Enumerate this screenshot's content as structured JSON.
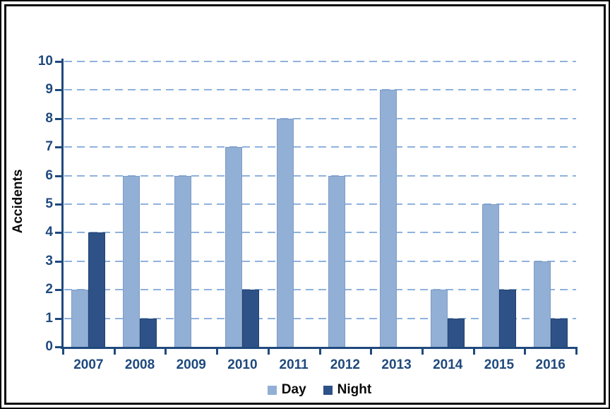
{
  "chart_data": {
    "type": "bar",
    "title": "",
    "categories": [
      "2007",
      "2008",
      "2009",
      "2010",
      "2011",
      "2012",
      "2013",
      "2014",
      "2015",
      "2016"
    ],
    "series": [
      {
        "name": "Day",
        "color": "#92AFD5",
        "border_color": "#7E9CC5",
        "values": [
          2,
          6,
          6,
          7,
          8,
          6,
          9,
          2,
          5,
          3
        ]
      },
      {
        "name": "Night",
        "color": "#2E5287",
        "border_color": "#24416C",
        "values": [
          4,
          1,
          0,
          2,
          0,
          0,
          0,
          1,
          2,
          1
        ]
      }
    ],
    "xlabel": "",
    "ylabel": "Accidents",
    "ylim": [
      0,
      10
    ],
    "ytick_step": 1,
    "grid": "horizontal-dashed",
    "legend_position": "bottom-center",
    "colors": {
      "axis": "#1F497D",
      "tick_label": "#1F497D",
      "gridline": "#8FB2DE",
      "ylabel_text": "#0a0a0a",
      "legend_text": "#0a0a0a",
      "frame_border": "#000000",
      "background": "#ffffff"
    }
  }
}
